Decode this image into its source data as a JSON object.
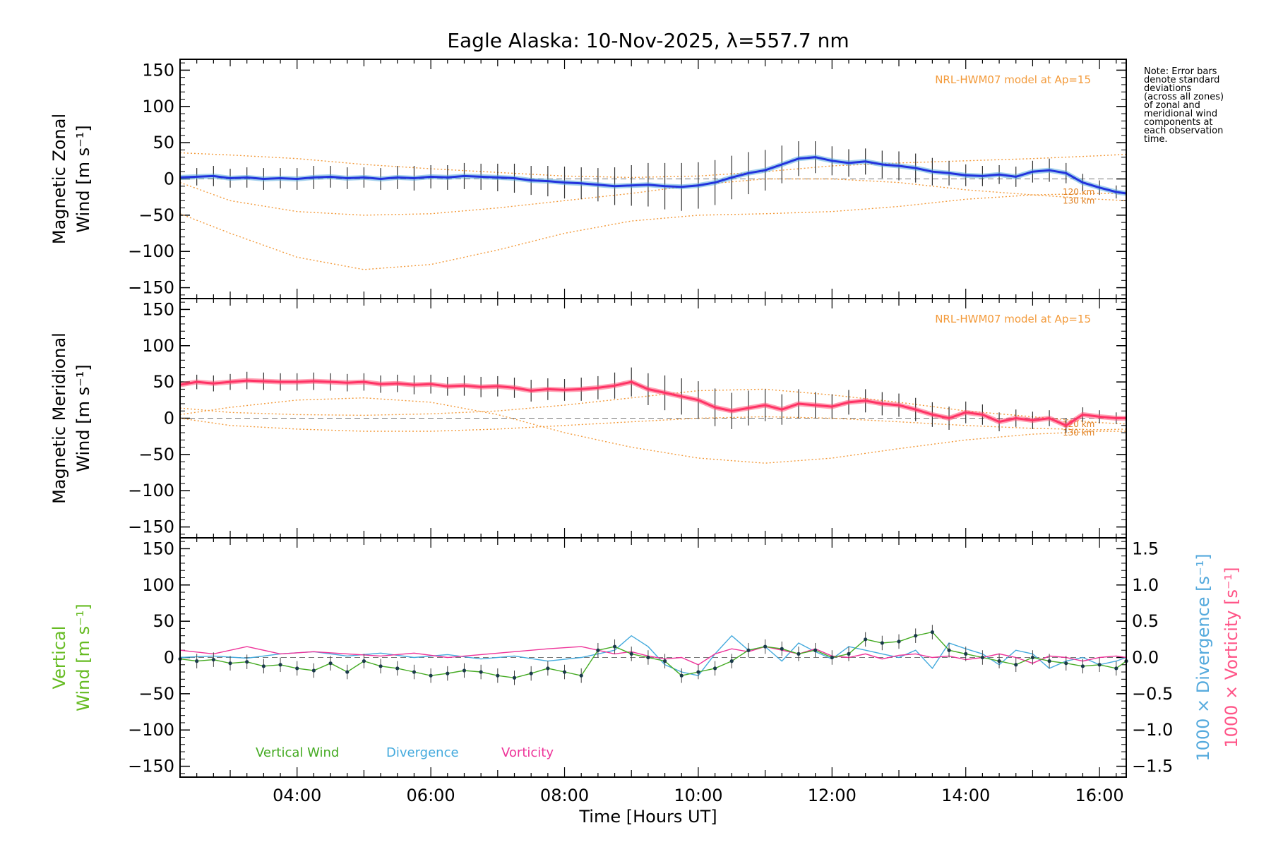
{
  "chart_data": {
    "type": "line",
    "title": "Eagle Alaska: 10-Nov-2025, λ=557.7 nm",
    "xlabel": "Time [Hours UT]",
    "xlim": [
      2.25,
      16.4
    ],
    "x_ticks": [
      4,
      6,
      8,
      10,
      12,
      14,
      16
    ],
    "x_tick_labels": [
      "04:00",
      "06:00",
      "08:00",
      "10:00",
      "12:00",
      "14:00",
      "16:00"
    ],
    "ylim": [
      -165,
      165
    ],
    "y_ticks": [
      -150,
      -100,
      -50,
      0,
      50,
      100,
      150
    ],
    "y_tick_labels": [
      "−150",
      "−100",
      "−50",
      "0",
      "50",
      "100",
      "150"
    ],
    "y2_ticks": [
      -1.5,
      -1.0,
      -0.5,
      0.0,
      0.5,
      1.0,
      1.5
    ],
    "y2_tick_labels": [
      "−1.5",
      "−1.0",
      "−0.5",
      "0.0",
      "0.5",
      "1.0",
      "1.5"
    ],
    "model_label": "NRL-HWM07 model at Ap=15",
    "model_alt_labels": [
      "120 km",
      "130 km"
    ],
    "note_lines": [
      "Note: Error bars",
      "denote standard",
      "deviations",
      "(across all zones)",
      "of zonal and",
      "meridional wind",
      "components at",
      "each observation",
      "time."
    ],
    "panels": [
      {
        "name": "zonal",
        "ylabel_line1": "Magnetic Zonal",
        "ylabel_line2": "Wind [m s⁻¹]",
        "line_color": "#2233dd",
        "mean": {
          "x": [
            2.25,
            2.5,
            2.75,
            3.0,
            3.25,
            3.5,
            3.75,
            4.0,
            4.25,
            4.5,
            4.75,
            5.0,
            5.25,
            5.5,
            5.75,
            6.0,
            6.25,
            6.5,
            6.75,
            7.0,
            7.25,
            7.5,
            7.75,
            8.0,
            8.25,
            8.5,
            8.75,
            9.0,
            9.25,
            9.5,
            9.75,
            10.0,
            10.25,
            10.5,
            10.75,
            11.0,
            11.25,
            11.5,
            11.75,
            12.0,
            12.25,
            12.5,
            12.75,
            13.0,
            13.25,
            13.5,
            13.75,
            14.0,
            14.25,
            14.5,
            14.75,
            15.0,
            15.25,
            15.5,
            15.75,
            16.0,
            16.25,
            16.4
          ],
          "y": [
            2,
            3,
            4,
            1,
            2,
            0,
            1,
            0,
            2,
            3,
            1,
            2,
            0,
            2,
            1,
            3,
            2,
            4,
            3,
            2,
            1,
            -2,
            -3,
            -5,
            -6,
            -8,
            -10,
            -9,
            -8,
            -10,
            -11,
            -9,
            -5,
            2,
            8,
            12,
            20,
            28,
            30,
            25,
            22,
            24,
            20,
            18,
            15,
            10,
            8,
            5,
            4,
            6,
            3,
            10,
            12,
            8,
            -5,
            -12,
            -18,
            -20
          ]
        },
        "errors": [
          12,
          12,
          14,
          13,
          14,
          15,
          14,
          15,
          16,
          15,
          15,
          14,
          15,
          16,
          17,
          16,
          17,
          18,
          18,
          19,
          20,
          20,
          21,
          22,
          22,
          23,
          26,
          28,
          30,
          32,
          33,
          32,
          31,
          30,
          29,
          28,
          26,
          24,
          22,
          20,
          19,
          18,
          19,
          20,
          20,
          19,
          17,
          15,
          14,
          13,
          14,
          15,
          16,
          14,
          12,
          10,
          9,
          8
        ],
        "model_curves": [
          {
            "x": [
              2.25,
              3,
              4,
              5,
              6,
              7,
              8,
              9,
              10,
              11,
              12,
              13,
              14,
              15,
              16,
              16.4
            ],
            "y": [
              36,
              33,
              28,
              20,
              14,
              9,
              4,
              2,
              4,
              10,
              18,
              22,
              25,
              28,
              32,
              34
            ]
          },
          {
            "x": [
              2.25,
              3,
              4,
              5,
              6,
              7,
              8,
              9,
              10,
              11,
              12,
              13,
              14,
              15,
              16,
              16.4
            ],
            "y": [
              -5,
              -30,
              -45,
              -50,
              -48,
              -40,
              -30,
              -20,
              -8,
              0,
              0,
              -5,
              -15,
              -22,
              -28,
              -30
            ]
          },
          {
            "x": [
              2.25,
              3,
              4,
              5,
              6,
              7,
              8,
              9,
              10,
              11,
              12,
              13,
              14,
              15,
              16,
              16.4
            ],
            "y": [
              -48,
              -75,
              -108,
              -125,
              -118,
              -98,
              -75,
              -58,
              -50,
              -48,
              -45,
              -38,
              -28,
              -22,
              -20,
              -20
            ]
          }
        ]
      },
      {
        "name": "meridional",
        "ylabel_line1": "Magnetic Meridional",
        "ylabel_line2": "Wind [m s⁻¹]",
        "line_color": "#ff3366",
        "mean": {
          "x": [
            2.25,
            2.5,
            2.75,
            3.0,
            3.25,
            3.5,
            3.75,
            4.0,
            4.25,
            4.5,
            4.75,
            5.0,
            5.25,
            5.5,
            5.75,
            6.0,
            6.25,
            6.5,
            6.75,
            7.0,
            7.25,
            7.5,
            7.75,
            8.0,
            8.25,
            8.5,
            8.75,
            9.0,
            9.25,
            9.5,
            9.75,
            10.0,
            10.25,
            10.5,
            10.75,
            11.0,
            11.25,
            11.5,
            11.75,
            12.0,
            12.25,
            12.5,
            12.75,
            13.0,
            13.25,
            13.5,
            13.75,
            14.0,
            14.25,
            14.5,
            14.75,
            15.0,
            15.25,
            15.5,
            15.75,
            16.0,
            16.25,
            16.4
          ],
          "y": [
            46,
            50,
            48,
            50,
            52,
            51,
            50,
            50,
            51,
            50,
            49,
            50,
            47,
            48,
            46,
            47,
            44,
            45,
            43,
            44,
            42,
            38,
            40,
            39,
            40,
            42,
            45,
            50,
            40,
            35,
            30,
            25,
            15,
            10,
            14,
            18,
            12,
            20,
            18,
            16,
            22,
            24,
            20,
            18,
            12,
            5,
            0,
            8,
            5,
            -5,
            0,
            -3,
            0,
            -10,
            5,
            2,
            0,
            0
          ]
        },
        "errors": [
          10,
          10,
          11,
          11,
          12,
          12,
          12,
          12,
          12,
          12,
          12,
          12,
          12,
          12,
          13,
          13,
          13,
          14,
          14,
          14,
          14,
          15,
          15,
          15,
          16,
          16,
          18,
          20,
          22,
          24,
          25,
          26,
          26,
          25,
          24,
          22,
          21,
          20,
          18,
          17,
          17,
          16,
          16,
          16,
          16,
          17,
          16,
          15,
          14,
          13,
          12,
          12,
          11,
          10,
          10,
          9,
          8,
          8
        ],
        "model_curves": [
          {
            "x": [
              2.25,
              3,
              4,
              5,
              6,
              7,
              8,
              9,
              10,
              11,
              12,
              13,
              14,
              15,
              16,
              16.4
            ],
            "y": [
              14,
              8,
              5,
              4,
              6,
              10,
              18,
              28,
              38,
              40,
              32,
              22,
              10,
              2,
              -6,
              -8
            ]
          },
          {
            "x": [
              2.25,
              3,
              4,
              5,
              6,
              7,
              8,
              9,
              10,
              11,
              12,
              13,
              14,
              15,
              16,
              16.4
            ],
            "y": [
              0,
              -10,
              -15,
              -18,
              -18,
              -15,
              -10,
              -5,
              0,
              2,
              0,
              -5,
              -10,
              -14,
              -16,
              -15
            ]
          },
          {
            "x": [
              2.25,
              3,
              4,
              5,
              6,
              7,
              8,
              9,
              10,
              11,
              12,
              13,
              14,
              15,
              16,
              16.4
            ],
            "y": [
              5,
              15,
              25,
              28,
              22,
              5,
              -20,
              -40,
              -55,
              -62,
              -55,
              -42,
              -30,
              -22,
              -18,
              -18
            ]
          }
        ]
      }
    ],
    "vertical_panel": {
      "ylabel_line1": "Vertical",
      "ylabel_line2": "Wind [m s⁻¹]",
      "y2label_div": "1000 × Divergence [s⁻¹]",
      "y2label_vort": "1000 × Vorticity [s⁻¹]",
      "series": [
        {
          "name": "Vertical Wind",
          "color": "#44aa22",
          "x": [
            2.25,
            2.5,
            2.75,
            3.0,
            3.25,
            3.5,
            3.75,
            4.0,
            4.25,
            4.5,
            4.75,
            5.0,
            5.25,
            5.5,
            5.75,
            6.0,
            6.25,
            6.5,
            6.75,
            7.0,
            7.25,
            7.5,
            7.75,
            8.0,
            8.25,
            8.5,
            8.75,
            9.0,
            9.25,
            9.5,
            9.75,
            10.0,
            10.25,
            10.5,
            10.75,
            11.0,
            11.25,
            11.5,
            11.75,
            12.0,
            12.25,
            12.5,
            12.75,
            13.0,
            13.25,
            13.5,
            13.75,
            14.0,
            14.25,
            14.5,
            14.75,
            15.0,
            15.25,
            15.5,
            15.75,
            16.0,
            16.25,
            16.4
          ],
          "y": [
            -2,
            -5,
            -3,
            -8,
            -6,
            -12,
            -10,
            -15,
            -18,
            -8,
            -20,
            -5,
            -12,
            -15,
            -20,
            -25,
            -22,
            -18,
            -20,
            -25,
            -28,
            -22,
            -15,
            -20,
            -25,
            10,
            15,
            5,
            0,
            -5,
            -25,
            -20,
            -15,
            -5,
            10,
            15,
            12,
            5,
            10,
            0,
            5,
            25,
            20,
            22,
            30,
            35,
            10,
            5,
            0,
            -5,
            -10,
            0,
            -5,
            -8,
            -12,
            -10,
            -15,
            -5
          ]
        },
        {
          "name": "Divergence",
          "color": "#44aadd",
          "x": [
            2.25,
            2.75,
            3.25,
            3.75,
            4.25,
            4.75,
            5.25,
            5.75,
            6.25,
            6.75,
            7.25,
            7.75,
            8.25,
            8.5,
            8.75,
            9.0,
            9.25,
            9.5,
            9.75,
            10.0,
            10.25,
            10.5,
            10.75,
            11.0,
            11.25,
            11.5,
            11.75,
            12.0,
            12.25,
            12.5,
            12.75,
            13.0,
            13.25,
            13.5,
            13.75,
            14.0,
            14.25,
            14.5,
            14.75,
            15.0,
            15.25,
            15.5,
            15.75,
            16.0,
            16.25,
            16.4
          ],
          "y": [
            0.0,
            0.02,
            -0.01,
            0.05,
            0.08,
            0.02,
            0.06,
            0.0,
            0.04,
            -0.02,
            0.02,
            -0.05,
            0.0,
            0.05,
            0.1,
            0.3,
            0.15,
            -0.1,
            -0.2,
            -0.25,
            0.05,
            0.3,
            0.1,
            0.15,
            -0.05,
            0.2,
            0.08,
            -0.02,
            0.15,
            0.1,
            0.05,
            0.0,
            0.1,
            -0.15,
            0.2,
            0.12,
            0.05,
            -0.1,
            0.1,
            0.05,
            -0.15,
            -0.05,
            0.0,
            -0.1,
            -0.05,
            0.0
          ]
        },
        {
          "name": "Vorticity",
          "color": "#ee3399",
          "x": [
            2.25,
            2.75,
            3.25,
            3.75,
            4.25,
            4.75,
            5.25,
            5.75,
            6.25,
            6.75,
            7.25,
            7.75,
            8.25,
            8.5,
            8.75,
            9.0,
            9.25,
            9.5,
            9.75,
            10.0,
            10.25,
            10.5,
            10.75,
            11.0,
            11.25,
            11.5,
            11.75,
            12.0,
            12.25,
            12.5,
            12.75,
            13.0,
            13.25,
            13.5,
            13.75,
            14.0,
            14.25,
            14.5,
            14.75,
            15.0,
            15.25,
            15.5,
            15.75,
            16.0,
            16.25,
            16.4
          ],
          "y": [
            0.1,
            0.05,
            0.15,
            0.05,
            0.08,
            0.05,
            0.02,
            0.06,
            0.0,
            0.04,
            0.08,
            0.12,
            0.15,
            0.1,
            0.05,
            0.08,
            0.02,
            -0.02,
            0.0,
            -0.1,
            0.05,
            0.12,
            0.08,
            0.15,
            0.1,
            0.05,
            0.12,
            0.02,
            0.0,
            0.05,
            -0.02,
            0.03,
            0.05,
            0.0,
            0.02,
            -0.03,
            0.0,
            0.05,
            0.0,
            -0.08,
            0.02,
            0.0,
            -0.05,
            0.0,
            0.02,
            0.0
          ]
        }
      ]
    }
  }
}
